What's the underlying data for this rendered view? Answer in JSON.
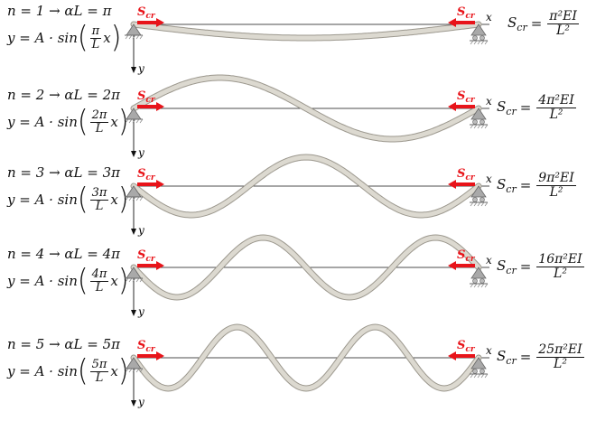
{
  "modes": [
    {
      "n": 1,
      "mode_eq": "n = 1 → αL = π",
      "shape_prefix": "y = A · sin",
      "arg_num": "π",
      "arg_den": "L",
      "arg_var": "x",
      "scr_lhs": "S",
      "scr_sub": "cr",
      "scr_num": "π²EI",
      "scr_den": "L²"
    },
    {
      "n": 2,
      "mode_eq": "n = 2 → αL = 2π",
      "shape_prefix": "y = A · sin",
      "arg_num": "2π",
      "arg_den": "L",
      "arg_var": "x",
      "scr_lhs": "S",
      "scr_sub": "cr",
      "scr_num": "4π²EI",
      "scr_den": "L²"
    },
    {
      "n": 3,
      "mode_eq": "n = 3 → αL = 3π",
      "shape_prefix": "y = A · sin",
      "arg_num": "3π",
      "arg_den": "L",
      "arg_var": "x",
      "scr_lhs": "S",
      "scr_sub": "cr",
      "scr_num": "9π²EI",
      "scr_den": "L²"
    },
    {
      "n": 4,
      "mode_eq": "n = 4 → αL = 4π",
      "shape_prefix": "y = A · sin",
      "arg_num": "4π",
      "arg_den": "L",
      "arg_var": "x",
      "scr_lhs": "S",
      "scr_sub": "cr",
      "scr_num": "16π²EI",
      "scr_den": "L²"
    },
    {
      "n": 5,
      "mode_eq": "n = 5 → αL = 5π",
      "shape_prefix": "y = A · sin",
      "arg_num": "5π",
      "arg_den": "L",
      "arg_var": "x",
      "scr_lhs": "S",
      "scr_sub": "cr",
      "scr_num": "25π²EI",
      "scr_den": "L²"
    }
  ],
  "labels": {
    "force_main": "S",
    "force_sub": "cr",
    "x_axis": "x",
    "y_axis": "y"
  },
  "colors": {
    "force": "#e8141a",
    "beam_fill": "#dcd9d0",
    "beam_edge": "#9c988e",
    "support": "#a9a9a9",
    "axis": "#111111"
  }
}
